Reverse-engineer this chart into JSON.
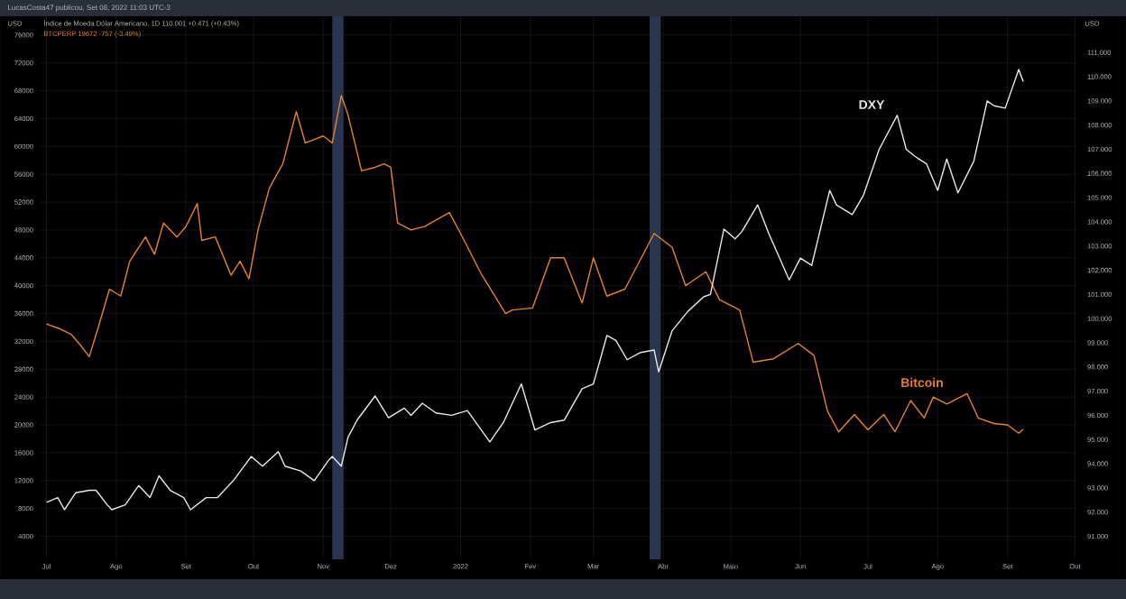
{
  "chart_data": {
    "type": "line",
    "title": "LucasCosta47 publicou, Set 08, 2022 11:03 UTC-3",
    "ylabel": "USD",
    "y2label": "USD",
    "annotations": [
      "Índice de Moeda Dólar Americano, 1D 110.001 +0.471 (+0.43%)",
      "BTCPERP 19672 -757 (-3.49%)",
      "DXY",
      "Bitcoin"
    ],
    "xlim": [
      "2021-06-28",
      "2022-10-02"
    ],
    "xticks": [
      {
        "value": "2021-07-01",
        "label": "Jul"
      },
      {
        "value": "2021-08-01",
        "label": "Ago"
      },
      {
        "value": "2021-09-01",
        "label": "Set"
      },
      {
        "value": "2021-10-01",
        "label": "Out"
      },
      {
        "value": "2021-11-01",
        "label": "Nov"
      },
      {
        "value": "2021-12-01",
        "label": "Dez"
      },
      {
        "value": "2022-01-01",
        "label": "2022"
      },
      {
        "value": "2022-02-01",
        "label": "Fev"
      },
      {
        "value": "2022-03-01",
        "label": "Mar"
      },
      {
        "value": "2022-04-01",
        "label": "Abr"
      },
      {
        "value": "2022-05-01",
        "label": "Maio"
      },
      {
        "value": "2022-06-01",
        "label": "Jun"
      },
      {
        "value": "2022-07-01",
        "label": "Jul"
      },
      {
        "value": "2022-08-01",
        "label": "Ago"
      },
      {
        "value": "2022-09-01",
        "label": "Set"
      },
      {
        "value": "2022-10-01",
        "label": "Out"
      }
    ],
    "ylim": [
      700,
      78700
    ],
    "yticks": [
      4000,
      8000,
      12000,
      16000,
      20000,
      24000,
      28000,
      32000,
      36000,
      40000,
      44000,
      48000,
      52000,
      56000,
      60000,
      64000,
      68000,
      72000,
      76000
    ],
    "y2lim": [
      90.05,
      112.5
    ],
    "y2ticks": [
      {
        "value": 91,
        "label": "91.000"
      },
      {
        "value": 92,
        "label": "92.000"
      },
      {
        "value": 93,
        "label": "93.000"
      },
      {
        "value": 94,
        "label": "94.000"
      },
      {
        "value": 95,
        "label": "95.000"
      },
      {
        "value": 96,
        "label": "96.000"
      },
      {
        "value": 97,
        "label": "97.000"
      },
      {
        "value": 98,
        "label": "98.000"
      },
      {
        "value": 99,
        "label": "99.000"
      },
      {
        "value": 100,
        "label": "100.000"
      },
      {
        "value": 101,
        "label": "101.000"
      },
      {
        "value": 102,
        "label": "102.000"
      },
      {
        "value": 103,
        "label": "103.000"
      },
      {
        "value": 104,
        "label": "104.000"
      },
      {
        "value": 105,
        "label": "105.000"
      },
      {
        "value": 106,
        "label": "106.000"
      },
      {
        "value": 107,
        "label": "107.000"
      },
      {
        "value": 108,
        "label": "108.000"
      },
      {
        "value": 109,
        "label": "109.000"
      },
      {
        "value": 110,
        "label": "110.000"
      },
      {
        "value": 111,
        "label": "111.000"
      }
    ],
    "grid": true,
    "marker": "none",
    "line_style": "solid",
    "bands": [
      {
        "axis": "x",
        "from": "2021-11-05",
        "to": "2021-11-10",
        "color": "#2a3550"
      },
      {
        "axis": "x",
        "from": "2022-03-26",
        "to": "2022-03-31",
        "color": "#2a3550"
      }
    ],
    "series": [
      {
        "color": "#e8822a",
        "x": [
          "2021-07-01",
          "2021-07-07",
          "2021-07-12",
          "2021-07-16",
          "2021-07-20",
          "2021-07-24",
          "2021-07-29",
          "2021-08-03",
          "2021-08-07",
          "2021-08-14",
          "2021-08-18",
          "2021-08-22",
          "2021-08-28",
          "2021-09-01",
          "2021-09-06",
          "2021-09-08",
          "2021-09-14",
          "2021-09-21",
          "2021-09-25",
          "2021-09-29",
          "2021-10-03",
          "2021-10-08",
          "2021-10-14",
          "2021-10-20",
          "2021-10-24",
          "2021-10-28",
          "2021-11-01",
          "2021-11-05",
          "2021-11-09",
          "2021-11-12",
          "2021-11-18",
          "2021-11-24",
          "2021-11-28",
          "2021-12-01",
          "2021-12-04",
          "2021-12-10",
          "2021-12-16",
          "2021-12-27",
          "2022-01-01",
          "2022-01-10",
          "2022-01-21",
          "2022-01-24",
          "2022-02-02",
          "2022-02-10",
          "2022-02-16",
          "2022-02-24",
          "2022-03-01",
          "2022-03-07",
          "2022-03-15",
          "2022-03-28",
          "2022-04-05",
          "2022-04-11",
          "2022-04-20",
          "2022-04-26",
          "2022-05-05",
          "2022-05-11",
          "2022-05-20",
          "2022-05-31",
          "2022-06-07",
          "2022-06-13",
          "2022-06-18",
          "2022-06-25",
          "2022-07-01",
          "2022-07-08",
          "2022-07-13",
          "2022-07-20",
          "2022-07-26",
          "2022-07-30",
          "2022-08-05",
          "2022-08-14",
          "2022-08-19",
          "2022-08-26",
          "2022-09-01",
          "2022-09-06",
          "2022-09-08"
        ],
        "values": [
          34500,
          33800,
          33000,
          31500,
          29800,
          34000,
          39500,
          38500,
          43500,
          47000,
          44500,
          49000,
          47000,
          48500,
          51800,
          46500,
          47000,
          41500,
          43500,
          41000,
          48000,
          54000,
          57500,
          65000,
          60500,
          61000,
          61500,
          60500,
          67300,
          64500,
          56500,
          57000,
          57500,
          57000,
          49000,
          48000,
          48500,
          50500,
          47500,
          41800,
          36000,
          36500,
          36800,
          44000,
          44000,
          37500,
          44000,
          38500,
          39500,
          47500,
          45500,
          40000,
          42000,
          38000,
          36500,
          29000,
          29500,
          31700,
          30000,
          22000,
          19000,
          21500,
          19300,
          21500,
          19000,
          23500,
          21000,
          24000,
          23000,
          24500,
          21000,
          20200,
          20000,
          18800,
          19400
        ]
      },
      {
        "color": "#e8e8e8",
        "axis": "y2",
        "x": [
          "2021-07-01",
          "2021-07-06",
          "2021-07-09",
          "2021-07-14",
          "2021-07-20",
          "2021-07-23",
          "2021-07-28",
          "2021-07-30",
          "2021-08-05",
          "2021-08-11",
          "2021-08-16",
          "2021-08-20",
          "2021-08-25",
          "2021-08-31",
          "2021-09-03",
          "2021-09-10",
          "2021-09-15",
          "2021-09-22",
          "2021-09-30",
          "2021-10-05",
          "2021-10-12",
          "2021-10-15",
          "2021-10-22",
          "2021-10-28",
          "2021-11-03",
          "2021-11-05",
          "2021-11-09",
          "2021-11-12",
          "2021-11-16",
          "2021-11-24",
          "2021-11-30",
          "2021-12-07",
          "2021-12-10",
          "2021-12-15",
          "2021-12-21",
          "2021-12-28",
          "2022-01-04",
          "2022-01-14",
          "2022-01-20",
          "2022-01-28",
          "2022-02-03",
          "2022-02-10",
          "2022-02-16",
          "2022-02-24",
          "2022-03-01",
          "2022-03-07",
          "2022-03-11",
          "2022-03-16",
          "2022-03-22",
          "2022-03-28",
          "2022-03-30",
          "2022-04-05",
          "2022-04-12",
          "2022-04-19",
          "2022-04-22",
          "2022-04-28",
          "2022-05-03",
          "2022-05-06",
          "2022-05-13",
          "2022-05-18",
          "2022-05-27",
          "2022-06-01",
          "2022-06-06",
          "2022-06-14",
          "2022-06-17",
          "2022-06-24",
          "2022-06-29",
          "2022-07-06",
          "2022-07-14",
          "2022-07-18",
          "2022-07-22",
          "2022-07-27",
          "2022-08-01",
          "2022-08-05",
          "2022-08-10",
          "2022-08-17",
          "2022-08-23",
          "2022-08-26",
          "2022-08-31",
          "2022-09-06",
          "2022-09-08"
        ],
        "values": [
          92.4,
          92.6,
          92.1,
          92.8,
          92.9,
          92.9,
          92.3,
          92.1,
          92.3,
          93.1,
          92.6,
          93.5,
          92.9,
          92.6,
          92.1,
          92.6,
          92.6,
          93.3,
          94.3,
          93.9,
          94.5,
          93.9,
          93.7,
          93.3,
          94.1,
          94.3,
          93.9,
          95.1,
          95.8,
          96.8,
          95.9,
          96.3,
          96.0,
          96.5,
          96.1,
          96.0,
          96.2,
          94.9,
          95.7,
          97.3,
          95.4,
          95.7,
          95.8,
          97.1,
          97.3,
          99.3,
          99.1,
          98.3,
          98.6,
          98.7,
          97.8,
          99.5,
          100.3,
          100.9,
          101.0,
          103.7,
          103.3,
          103.6,
          104.7,
          103.5,
          101.6,
          102.5,
          102.2,
          105.3,
          104.7,
          104.3,
          105.1,
          107.0,
          108.4,
          107.0,
          106.7,
          106.4,
          105.3,
          106.6,
          105.2,
          106.5,
          109.0,
          108.8,
          108.7,
          110.3,
          109.8
        ]
      }
    ]
  }
}
